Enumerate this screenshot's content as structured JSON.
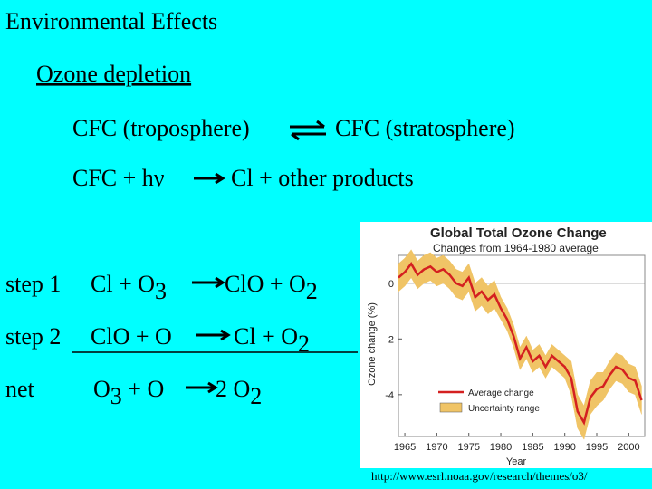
{
  "title": "Environmental Effects",
  "heading": "Ozone depletion",
  "lines": [
    {
      "left": [
        {
          "text": "CFC (troposphere)"
        }
      ],
      "right": [
        {
          "text": "CFC (stratosphere)"
        }
      ]
    },
    {
      "left": [
        {
          "text": "CFC + hν"
        }
      ],
      "right": [
        {
          "text": "Cl + other products"
        }
      ]
    }
  ],
  "steps": [
    {
      "label": "step 1",
      "left": [
        {
          "text": "Cl + O"
        },
        {
          "sub": "3"
        }
      ],
      "right": [
        {
          "text": "ClO + O"
        },
        {
          "sub": "2"
        }
      ]
    },
    {
      "label": "step 2",
      "left": [
        {
          "text": "ClO + O"
        }
      ],
      "right": [
        {
          "text": "Cl + O"
        },
        {
          "sub": "2"
        }
      ]
    },
    {
      "label": "net",
      "left": [
        {
          "text": "O"
        },
        {
          "sub": "3"
        },
        {
          "text": " + O"
        }
      ],
      "right": [
        {
          "text": "2 O"
        },
        {
          "sub": "2"
        }
      ]
    }
  ],
  "source": "http://www.esrl.noaa.gov/research/themes/o3/",
  "chart_data": {
    "type": "line",
    "title": "Global Total Ozone Change",
    "subtitle": "Changes from 1964-1980 average",
    "x_label": "Year",
    "y_label": "Ozone change (%)",
    "x": [
      1964,
      1965,
      1966,
      1967,
      1968,
      1969,
      1970,
      1971,
      1972,
      1973,
      1974,
      1975,
      1976,
      1977,
      1978,
      1979,
      1980,
      1981,
      1982,
      1983,
      1984,
      1985,
      1986,
      1987,
      1988,
      1989,
      1990,
      1991,
      1992,
      1993,
      1994,
      1995,
      1996,
      1997,
      1998,
      1999,
      2000,
      2001,
      2002
    ],
    "series": [
      {
        "name": "Average change",
        "color": "#d42020",
        "values": [
          0.2,
          0.4,
          0.7,
          0.3,
          0.5,
          0.6,
          0.4,
          0.5,
          0.3,
          0.0,
          -0.1,
          0.2,
          -0.5,
          -0.3,
          -0.6,
          -0.4,
          -0.9,
          -1.3,
          -1.9,
          -2.7,
          -2.3,
          -2.8,
          -2.6,
          -3.0,
          -2.6,
          -2.8,
          -3.0,
          -3.4,
          -4.6,
          -5.0,
          -4.1,
          -3.8,
          -3.7,
          -3.3,
          -3.0,
          -3.1,
          -3.4,
          -3.5,
          -4.2
        ]
      }
    ],
    "band": {
      "name": "Uncertainty range",
      "color": "#f0c466",
      "errors": [
        0.5,
        0.5,
        0.5,
        0.5,
        0.5,
        0.5,
        0.5,
        0.5,
        0.5,
        0.5,
        0.5,
        0.5,
        0.5,
        0.5,
        0.5,
        0.5,
        0.4,
        0.4,
        0.4,
        0.4,
        0.4,
        0.4,
        0.4,
        0.4,
        0.4,
        0.4,
        0.4,
        0.6,
        0.6,
        0.6,
        0.6,
        0.6,
        0.5,
        0.5,
        0.5,
        0.5,
        0.5,
        0.5,
        0.5
      ]
    },
    "xlim": [
      1964,
      2002.5
    ],
    "ylim": [
      -5.5,
      1
    ],
    "xticks": [
      1965,
      1970,
      1975,
      1980,
      1985,
      1990,
      1995,
      2000
    ],
    "yticks": [
      0,
      -2,
      -4
    ]
  }
}
